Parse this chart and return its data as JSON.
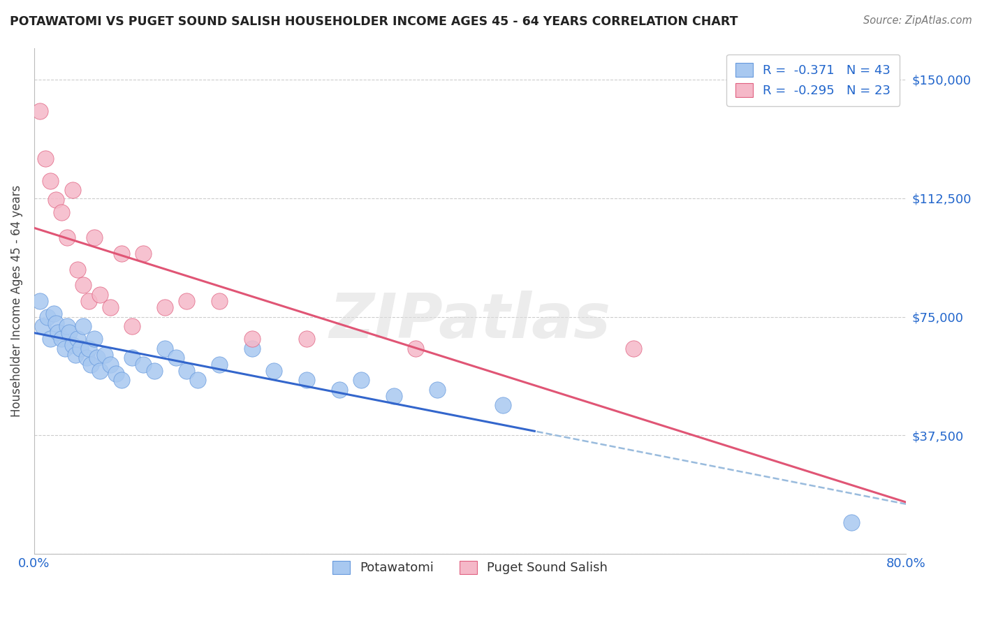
{
  "title": "POTAWATOMI VS PUGET SOUND SALISH HOUSEHOLDER INCOME AGES 45 - 64 YEARS CORRELATION CHART",
  "source": "Source: ZipAtlas.com",
  "ylabel": "Householder Income Ages 45 - 64 years",
  "xlim": [
    0.0,
    0.8
  ],
  "ylim": [
    0,
    160000
  ],
  "yticks": [
    0,
    37500,
    75000,
    112500,
    150000
  ],
  "ytick_labels_right": [
    "",
    "$37,500",
    "$75,000",
    "$112,500",
    "$150,000"
  ],
  "xticks": [
    0.0,
    0.2,
    0.4,
    0.6,
    0.8
  ],
  "xtick_labels": [
    "0.0%",
    "",
    "",
    "",
    "80.0%"
  ],
  "blue_R": -0.371,
  "blue_N": 43,
  "pink_R": -0.295,
  "pink_N": 23,
  "blue_label": "Potawatomi",
  "pink_label": "Puget Sound Salish",
  "blue_color": "#a8c8f0",
  "pink_color": "#f5b8c8",
  "blue_edge_color": "#6699dd",
  "pink_edge_color": "#e06080",
  "blue_line_color": "#3366cc",
  "pink_line_color": "#e05575",
  "dashed_line_color": "#99bbdd",
  "background_color": "#ffffff",
  "title_color": "#222222",
  "axis_label_color": "#2266cc",
  "watermark": "ZIPatlas",
  "blue_x": [
    0.005,
    0.008,
    0.012,
    0.015,
    0.018,
    0.02,
    0.022,
    0.025,
    0.028,
    0.03,
    0.032,
    0.035,
    0.038,
    0.04,
    0.042,
    0.045,
    0.048,
    0.05,
    0.052,
    0.055,
    0.058,
    0.06,
    0.065,
    0.07,
    0.075,
    0.08,
    0.09,
    0.1,
    0.11,
    0.12,
    0.13,
    0.14,
    0.15,
    0.17,
    0.2,
    0.22,
    0.25,
    0.28,
    0.3,
    0.33,
    0.37,
    0.43,
    0.75
  ],
  "blue_y": [
    80000,
    72000,
    75000,
    68000,
    76000,
    73000,
    70000,
    68000,
    65000,
    72000,
    70000,
    66000,
    63000,
    68000,
    65000,
    72000,
    62000,
    65000,
    60000,
    68000,
    62000,
    58000,
    63000,
    60000,
    57000,
    55000,
    62000,
    60000,
    58000,
    65000,
    62000,
    58000,
    55000,
    60000,
    65000,
    58000,
    55000,
    52000,
    55000,
    50000,
    52000,
    47000,
    10000
  ],
  "pink_x": [
    0.005,
    0.01,
    0.015,
    0.02,
    0.025,
    0.03,
    0.035,
    0.04,
    0.045,
    0.05,
    0.055,
    0.06,
    0.07,
    0.08,
    0.09,
    0.1,
    0.12,
    0.14,
    0.17,
    0.2,
    0.25,
    0.35,
    0.55
  ],
  "pink_y": [
    140000,
    125000,
    118000,
    112000,
    108000,
    100000,
    115000,
    90000,
    85000,
    80000,
    100000,
    82000,
    78000,
    95000,
    72000,
    95000,
    78000,
    80000,
    80000,
    68000,
    68000,
    65000,
    65000
  ],
  "blue_line_x_solid_end": 0.46,
  "pink_line_x_start": 0.0,
  "pink_line_x_end": 0.8
}
